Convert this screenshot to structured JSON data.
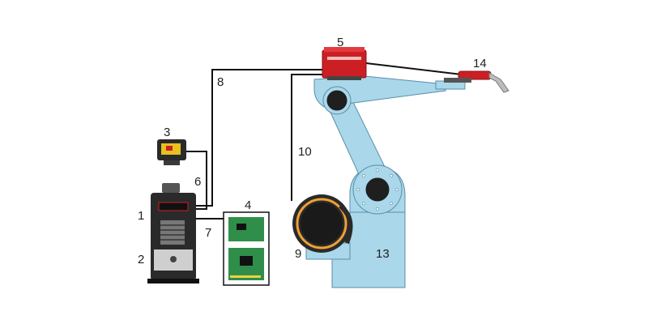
{
  "colors": {
    "robot_body": "#aad7ea",
    "robot_outline": "#5a8fa8",
    "feeder_red": "#cc1f24",
    "cable": "#111111",
    "positioner_orange": "#f0a033",
    "power_source_dark": "#2a2a2a",
    "board_green": "#2f8f4a"
  },
  "labels": {
    "power_source": "1",
    "control_panel": "2",
    "pendant": "3",
    "boards": "4",
    "wire_feeder": "5",
    "cable_6": "6",
    "cable_7": "7",
    "cable_8": "8",
    "positioner": "9",
    "cable_10": "10",
    "robot": "13",
    "torch": "14"
  },
  "icons": {
    "robot": "industrial-robot-arm",
    "feeder": "wire-feeder-box",
    "torch": "welding-torch",
    "pendant": "teach-pendant",
    "power_source": "welding-power-source",
    "positioner": "rotary-positioner",
    "boards": "interface-circuit-boards"
  }
}
